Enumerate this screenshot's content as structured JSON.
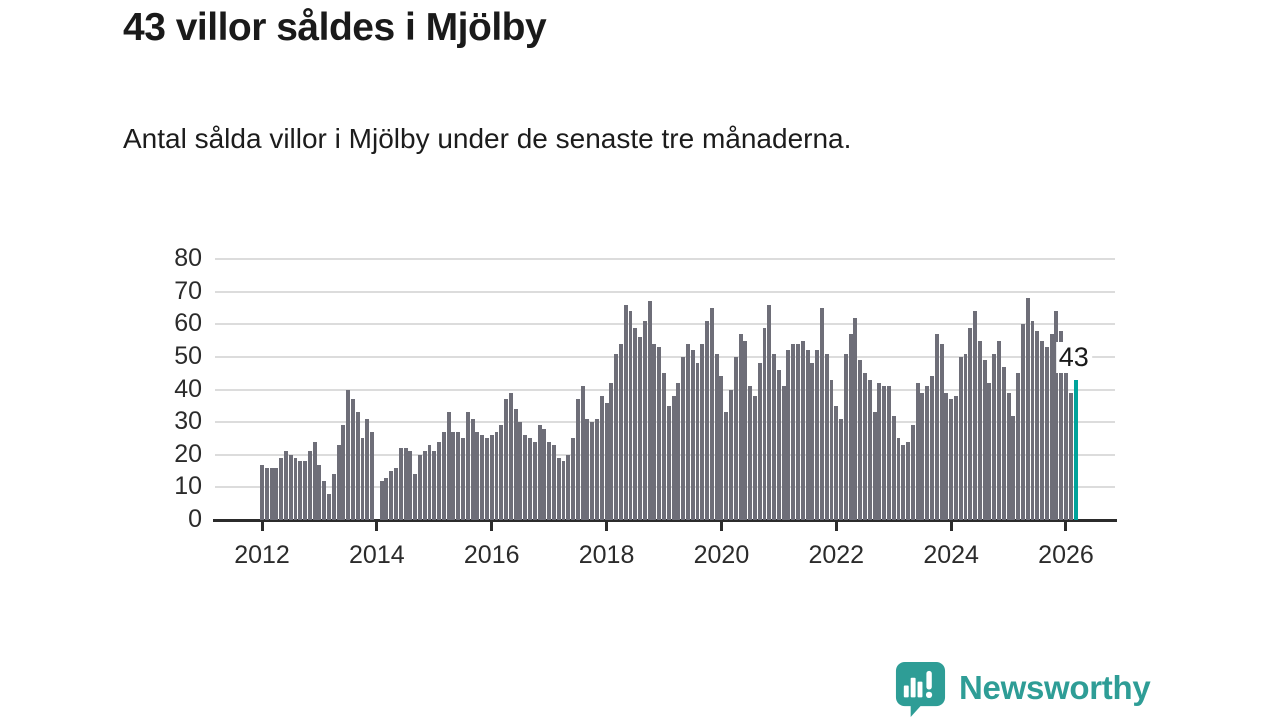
{
  "header": {
    "title": "43 villor såldes i Mjölby",
    "subtitle": "Antal sålda villor i Mjölby under de senaste tre månaderna."
  },
  "chart_data": {
    "type": "bar",
    "title": "43 villor såldes i Mjölby",
    "subtitle": "Antal sålda villor i Mjölby under de senaste tre månaderna.",
    "x_start": "2012-01",
    "x_interval": "monthly",
    "values": [
      17,
      16,
      16,
      16,
      19,
      21,
      20,
      19,
      18,
      18,
      21,
      24,
      17,
      12,
      8,
      14,
      23,
      29,
      40,
      37,
      33,
      25,
      31,
      27,
      null,
      12,
      13,
      15,
      16,
      22,
      22,
      21,
      14,
      20,
      21,
      23,
      21,
      24,
      27,
      33,
      27,
      27,
      25,
      33,
      31,
      27,
      26,
      25,
      26,
      27,
      29,
      37,
      39,
      34,
      30,
      26,
      25,
      24,
      29,
      28,
      24,
      23,
      19,
      18,
      20,
      25,
      37,
      41,
      31,
      30,
      31,
      38,
      36,
      42,
      51,
      54,
      66,
      64,
      59,
      56,
      61,
      67,
      54,
      53,
      45,
      35,
      38,
      42,
      50,
      54,
      52,
      48,
      54,
      61,
      65,
      51,
      44,
      33,
      40,
      50,
      57,
      55,
      41,
      38,
      48,
      59,
      66,
      51,
      46,
      41,
      52,
      54,
      54,
      55,
      52,
      48,
      52,
      65,
      51,
      43,
      35,
      31,
      51,
      57,
      62,
      49,
      45,
      43,
      33,
      42,
      41,
      41,
      32,
      25,
      23,
      24,
      29,
      42,
      39,
      41,
      44,
      57,
      54,
      39,
      37,
      38,
      50,
      51,
      59,
      64,
      55,
      49,
      42,
      51,
      55,
      47,
      39,
      32,
      45,
      60,
      68,
      61,
      58,
      55,
      53,
      57,
      64,
      58,
      48,
      39,
      43
    ],
    "ylim": [
      0,
      80
    ],
    "yticks": [
      0,
      10,
      20,
      30,
      40,
      50,
      60,
      70,
      80
    ],
    "xticks": [
      2012,
      2014,
      2016,
      2018,
      2020,
      2022,
      2024,
      2026
    ],
    "grid": true,
    "legend": "none",
    "bar_color": "#6E6E78",
    "highlight_color": "#00A39B",
    "highlight_index": 170,
    "annotation": {
      "text": "43",
      "index": 170
    }
  },
  "footer": {
    "brand": "Newsworthy"
  }
}
